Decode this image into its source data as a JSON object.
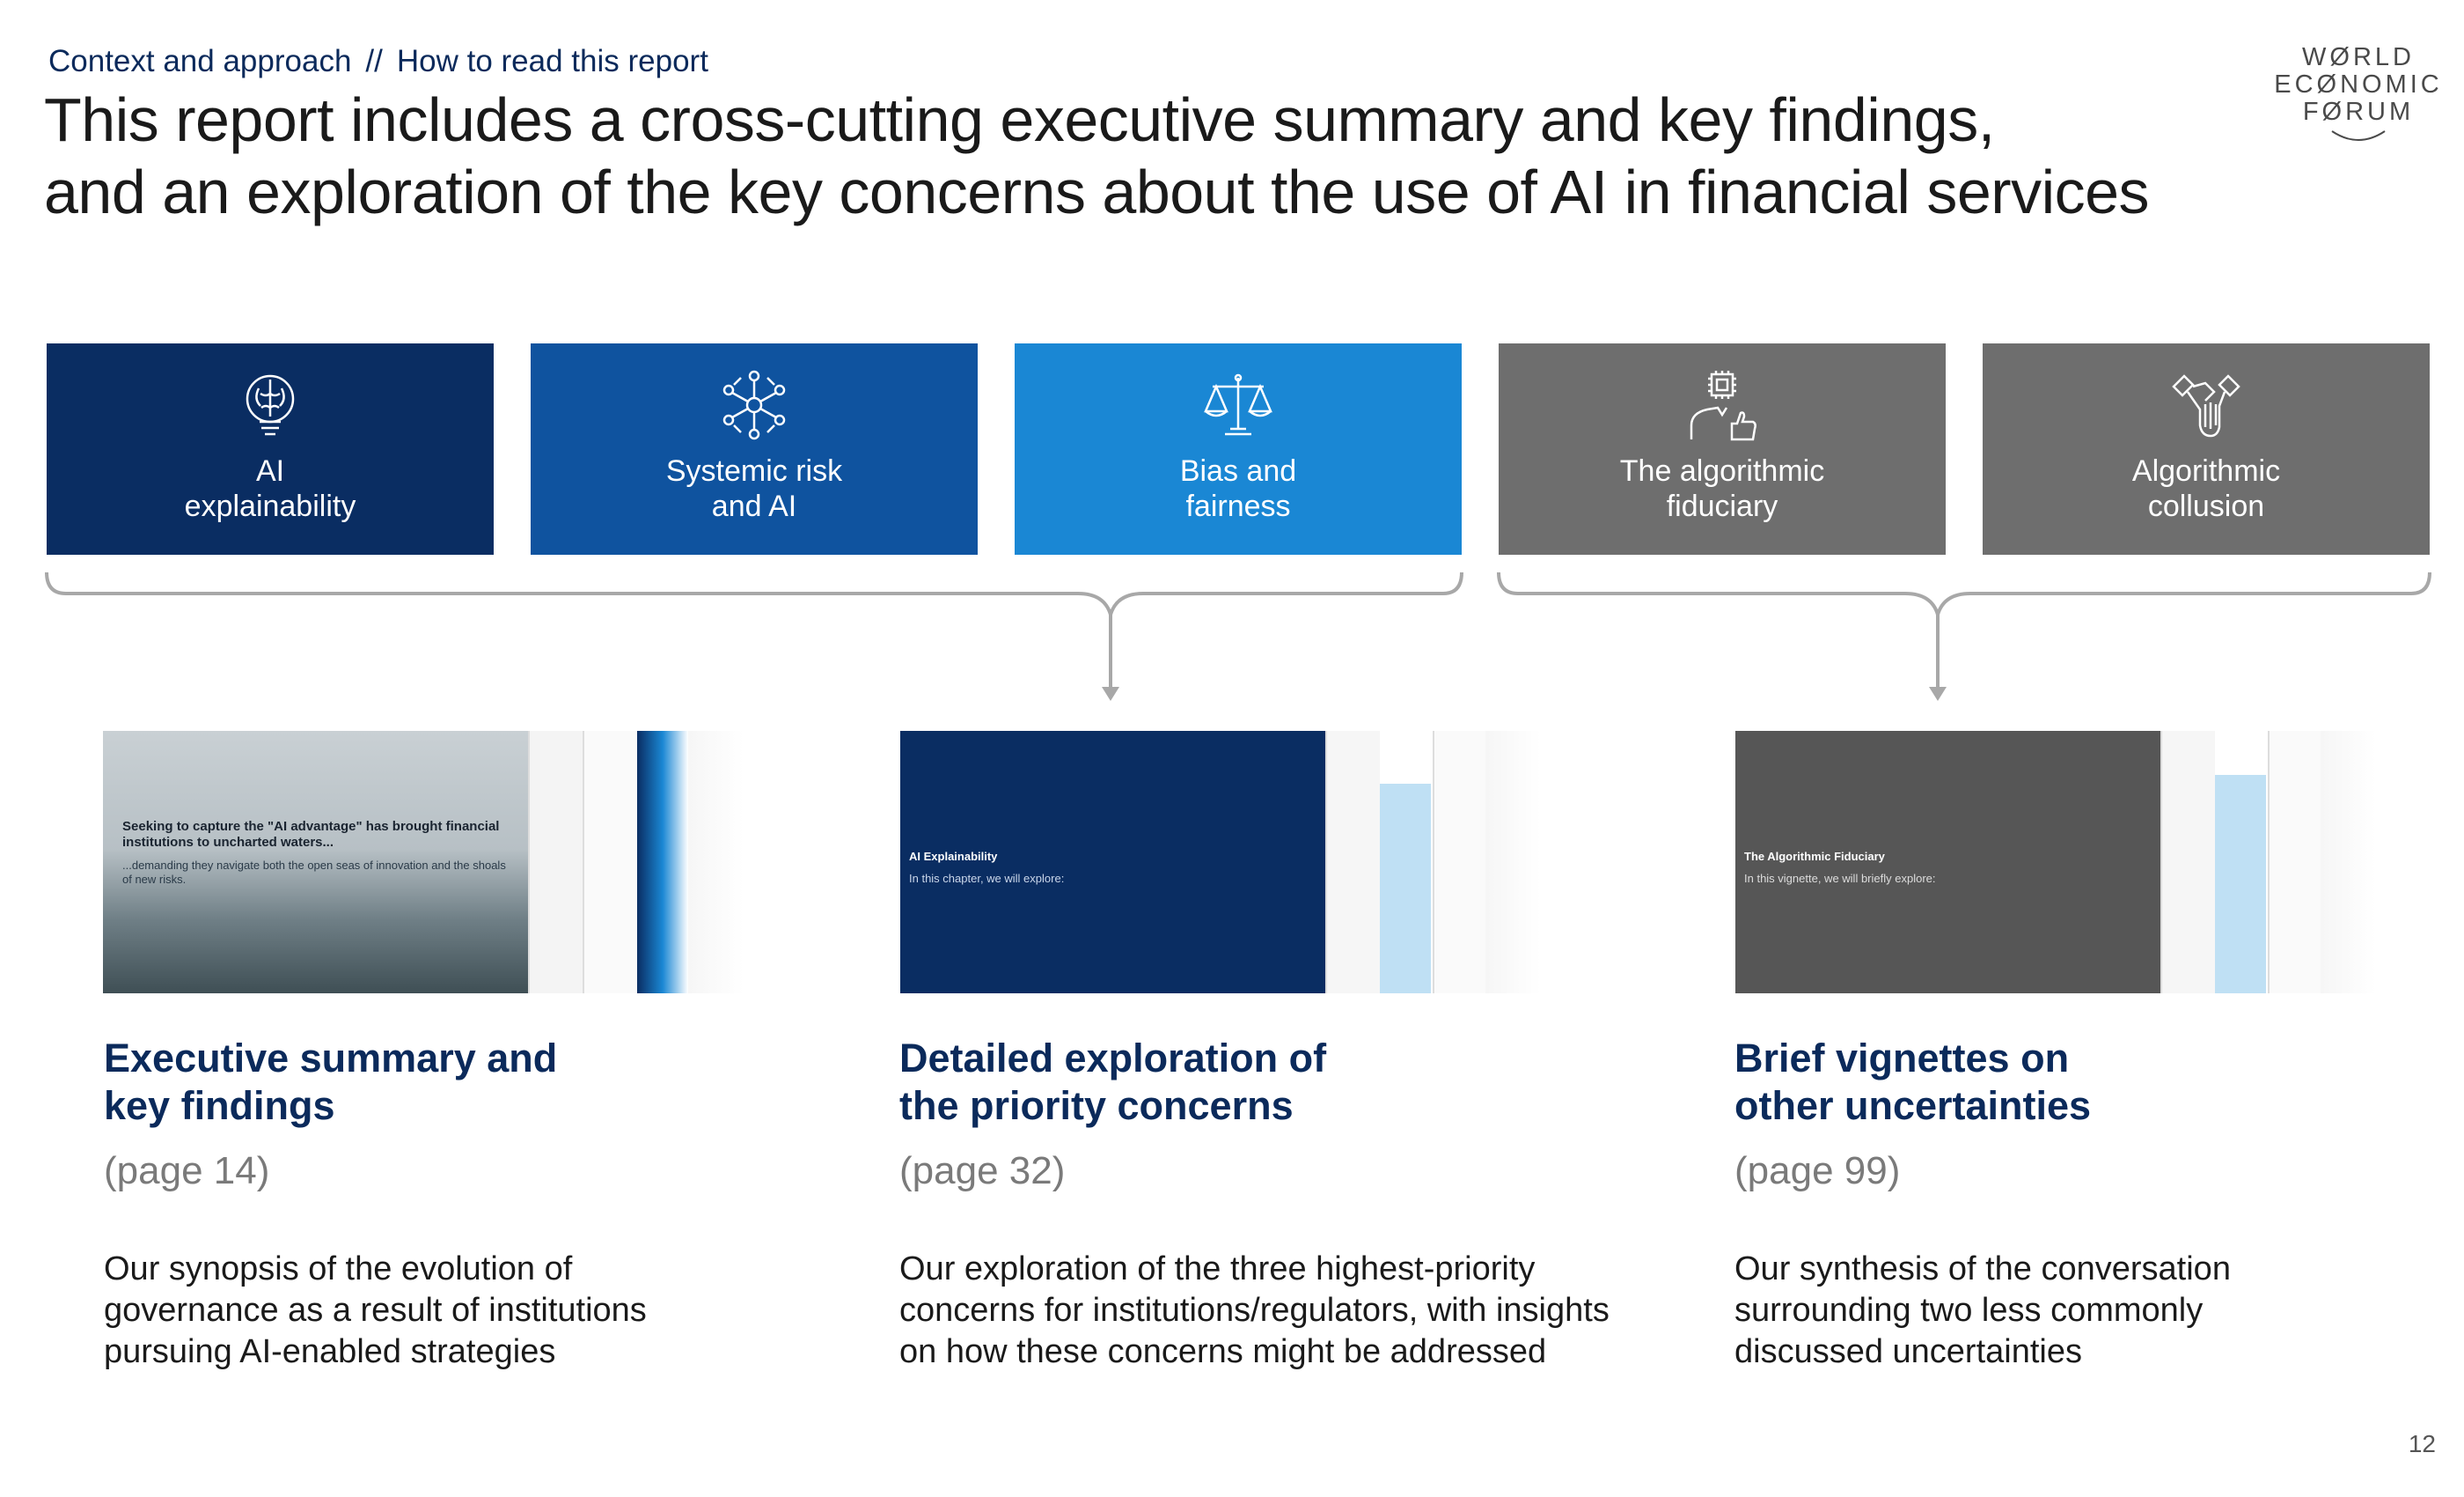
{
  "header": {
    "section": "Context and approach",
    "separator": "//",
    "subsection": "How to read this report",
    "title_line1": "This report includes a cross-cutting executive summary and key findings,",
    "title_line2": "and an exploration of the key concerns about the use of AI in financial services"
  },
  "logo": {
    "line1": "WØRLD",
    "line2": "ECØNOMIC",
    "line3": "FØRUM"
  },
  "tiles": [
    {
      "line1": "AI",
      "line2": "explainability",
      "icon": "brain-bulb-icon",
      "color": "#0a2d62"
    },
    {
      "line1": "Systemic risk",
      "line2": "and AI",
      "icon": "network-icon",
      "color": "#0f539f"
    },
    {
      "line1": "Bias and",
      "line2": "fairness",
      "icon": "scales-icon",
      "color": "#1a87d4"
    },
    {
      "line1": "The algorithmic",
      "line2": "fiduciary",
      "icon": "chip-person-icon",
      "color": "#6e6e6e"
    },
    {
      "line1": "Algorithmic",
      "line2": "collusion",
      "icon": "handshake-icon",
      "color": "#6e6e6e"
    }
  ],
  "sections": [
    {
      "title_line1": "Executive summary and",
      "title_line2": "key findings",
      "page": "(page 14)",
      "desc_line1": "Our synopsis of the evolution of",
      "desc_line2": "governance as a result of institutions",
      "desc_line3": "pursuing AI-enabled strategies",
      "thumb_heading": "Seeking to capture the \"AI advantage\" has brought financial institutions to uncharted waters...",
      "thumb_body": "...demanding they navigate both the open seas of innovation and the shoals of new risks."
    },
    {
      "title_line1": "Detailed exploration of",
      "title_line2": "the priority concerns",
      "page": "(page 32)",
      "desc_line1": "Our exploration of the three highest-priority",
      "desc_line2": "concerns for institutions/regulators, with insights",
      "desc_line3": "on how these concerns might be addressed",
      "thumb_heading": "AI Explainability",
      "thumb_body": "In this chapter, we will explore:"
    },
    {
      "title_line1": "Brief vignettes on",
      "title_line2": "other uncertainties",
      "page": "(page 99)",
      "desc_line1": "Our synthesis of the conversation",
      "desc_line2": "surrounding two less commonly",
      "desc_line3": "discussed uncertainties",
      "thumb_heading": "The Algorithmic Fiduciary",
      "thumb_body": "In this vignette, we will briefly explore:"
    }
  ],
  "page_number": "12",
  "colors": {
    "navy": "#0b2a5b",
    "grey_tile": "#6e6e6e",
    "bracket": "#a8a8a8"
  }
}
